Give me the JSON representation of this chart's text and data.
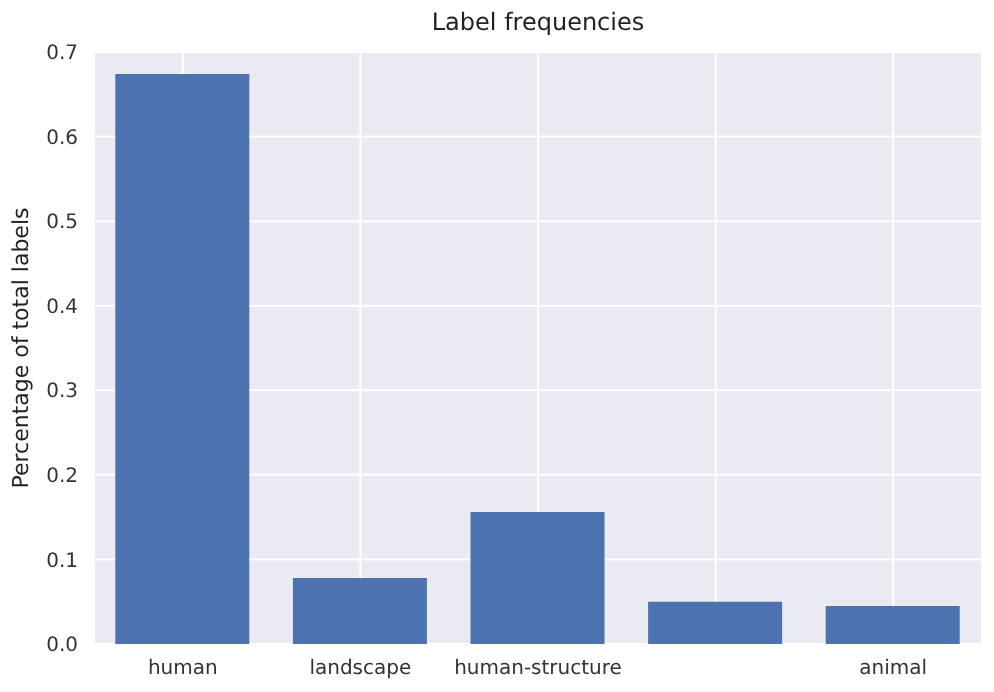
{
  "chart_data": {
    "type": "bar",
    "title": "Label frequencies",
    "ylabel": "Percentage of total labels",
    "categories": [
      "human",
      "landscape",
      "human-structure",
      null,
      "animal"
    ],
    "values": [
      0.674,
      0.078,
      0.156,
      0.05,
      0.045
    ],
    "color": "#4c72b0",
    "ylim": [
      0,
      0.7
    ],
    "yticks": [
      {
        "value": 0,
        "label": "0.0"
      },
      0.1,
      0.2,
      0.3,
      0.4,
      0.5,
      0.6,
      0.7
    ],
    "grid": true
  }
}
